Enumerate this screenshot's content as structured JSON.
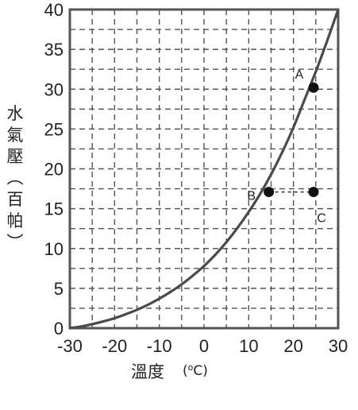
{
  "chart_data": {
    "type": "line",
    "ylabel_chars": [
      "水",
      "氣",
      "壓",
      "︵",
      "百",
      "帕",
      "︶"
    ],
    "xlabel": "溫度",
    "xlabel_unit_pre": "(",
    "xlabel_unit_deg": "o",
    "xlabel_unit_post": "C)",
    "xlim": [
      -30,
      30
    ],
    "ylim": [
      0,
      40
    ],
    "xticks": [
      -30,
      -20,
      -10,
      0,
      10,
      20,
      30
    ],
    "yticks": [
      0,
      5,
      10,
      15,
      20,
      25,
      30,
      35,
      40
    ],
    "grid": true,
    "curve": {
      "x": [
        -30,
        -27.5,
        -25,
        -22.5,
        -20,
        -17.5,
        -15,
        -12.5,
        -10,
        -7.5,
        -5,
        -2.5,
        0,
        2.5,
        5,
        7.5,
        10,
        12.5,
        15,
        17.5,
        20,
        22.5,
        25,
        27.5,
        30
      ],
      "y": [
        0,
        0.2,
        0.5,
        0.85,
        1.25,
        1.75,
        2.3,
        2.95,
        3.7,
        4.55,
        5.5,
        6.6,
        7.8,
        9.2,
        10.8,
        12.6,
        14.6,
        16.8,
        19.3,
        22.1,
        25.2,
        28.7,
        32.2,
        36.0,
        40
      ]
    },
    "points": [
      {
        "label": "A",
        "x": 24.5,
        "y": 30.2
      },
      {
        "label": "B",
        "x": 14.5,
        "y": 17.1
      },
      {
        "label": "C",
        "x": 24.5,
        "y": 17.1
      }
    ],
    "connector": {
      "from": "B",
      "to": "C",
      "style": "dashed"
    }
  }
}
